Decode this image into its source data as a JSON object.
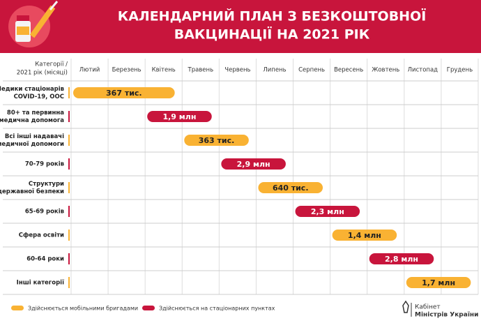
{
  "header": {
    "title": [
      "КАЛЕНДАРНИЙ ПЛАН З БЕЗКОШТОВНОЇ",
      "ВАКЦИНАЦІЇ НА 2021 РІК"
    ]
  },
  "table": {
    "corner": [
      "Категорії /",
      "2021 рік (місяці)"
    ],
    "months": [
      "Лютий",
      "Березень",
      "Квітень",
      "Травень",
      "Червень",
      "Липень",
      "Серпень",
      "Вересень",
      "Жовтень",
      "Листопад",
      "Грудень"
    ],
    "rows": [
      {
        "label": [
          "Медики стаціонарів",
          "COVID-19, ООС"
        ],
        "bar": "367 тис.",
        "from": "Лютий",
        "to": "Квітень",
        "color": "#f9b233"
      },
      {
        "label": [
          "80+ та первинна",
          "медична допомога"
        ],
        "bar": "1,9 млн",
        "from": "Квітень",
        "to": "Травень",
        "color": "#c8153c"
      },
      {
        "label": [
          "Всі інші надавачі",
          "медичної допомоги"
        ],
        "bar": "363 тис.",
        "from": "Травень",
        "to": "Червень",
        "color": "#f9b233"
      },
      {
        "label": [
          "70-79 років"
        ],
        "bar": "2,9 млн",
        "from": "Червень",
        "to": "Липень",
        "color": "#c8153c"
      },
      {
        "label": [
          "Структури",
          "державної безпеки"
        ],
        "bar": "640 тис.",
        "from": "Липень",
        "to": "Серпень",
        "color": "#f9b233"
      },
      {
        "label": [
          "65-69 років"
        ],
        "bar": "2,3 млн",
        "from": "Серпень",
        "to": "Вересень",
        "color": "#c8153c"
      },
      {
        "label": [
          "Сфера освіти"
        ],
        "bar": "1,4 млн",
        "from": "Вересень",
        "to": "Жовтень",
        "color": "#f9b233"
      },
      {
        "label": [
          "60-64 роки"
        ],
        "bar": "2,8 млн",
        "from": "Жовтень",
        "to": "Листопад",
        "color": "#c8153c"
      },
      {
        "label": [
          "Інші категорії"
        ],
        "bar": "1,7 млн",
        "from": "Листопад",
        "to": "Грудень",
        "color": "#f9b233"
      }
    ]
  },
  "legend": [
    {
      "label": "Здійснюється мобільними бригадами",
      "color": "#f9b233"
    },
    {
      "label": "Здійснюється на стаціонарних пунктах",
      "color": "#c8153c"
    }
  ],
  "footer": {
    "org": [
      "Кабінет",
      "Міністрів України"
    ]
  }
}
